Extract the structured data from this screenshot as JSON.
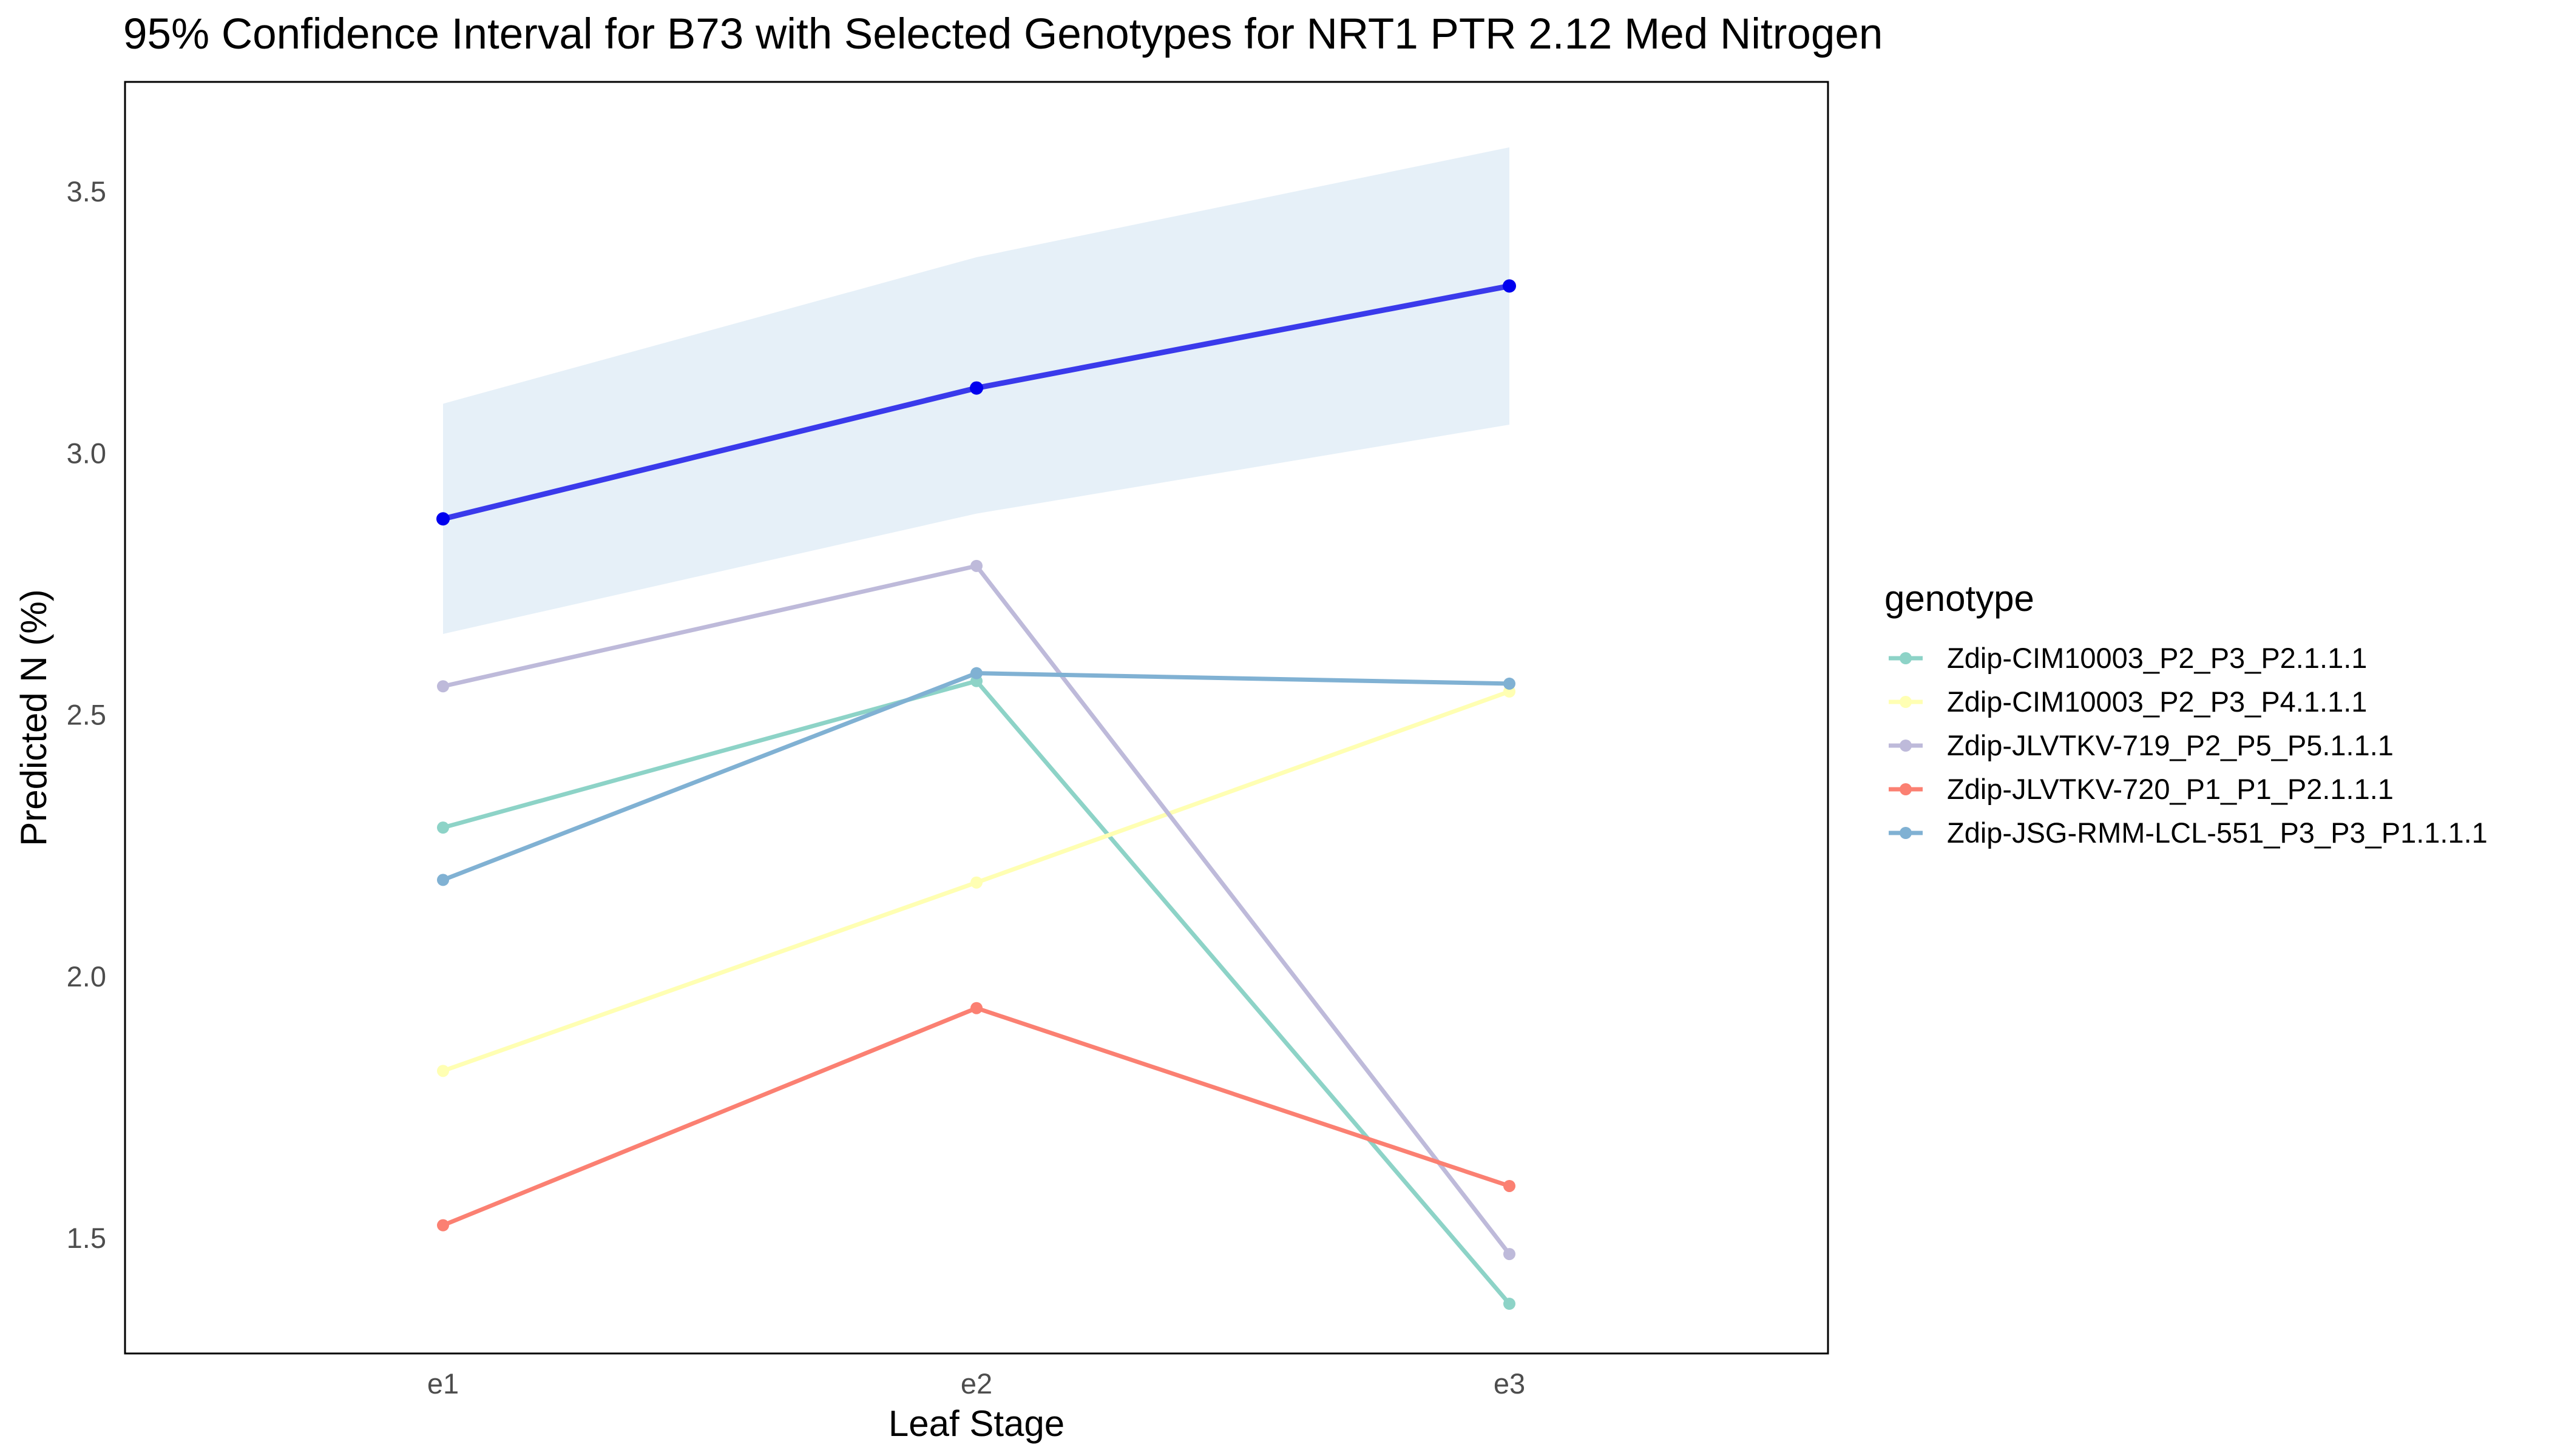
{
  "chart_data": {
    "type": "line",
    "title": "95% Confidence Interval for B73 with Selected Genotypes for NRT1 PTR 2.12 Med Nitrogen",
    "xlabel": "Leaf Stage",
    "ylabel": "Predicted N (%)",
    "categories": [
      "e1",
      "e2",
      "e3"
    ],
    "ylim": [
      1.28,
      3.71
    ],
    "yticks": [
      1.5,
      2.0,
      2.5,
      3.0,
      3.5
    ],
    "ytick_labels": [
      "1.5",
      "2.0",
      "2.5",
      "3.0",
      "3.5"
    ],
    "grid": false,
    "legend_position": "right",
    "legend_title": "genotype",
    "reference": {
      "values": [
        2.875,
        3.125,
        3.32
      ],
      "ci_lower": [
        2.655,
        2.885,
        3.055
      ],
      "ci_upper": [
        3.095,
        3.375,
        3.585
      ],
      "line_color": "#3a3aeb",
      "point_color": "#0000ee",
      "ribbon_color": "#e6f0f8"
    },
    "series": [
      {
        "name": "Zdip-CIM10003_P2_P3_P2.1.1.1",
        "values": [
          2.285,
          2.565,
          1.375
        ],
        "color": "#8dd3c7"
      },
      {
        "name": "Zdip-CIM10003_P2_P3_P4.1.1.1",
        "values": [
          1.82,
          2.18,
          2.545
        ],
        "color": "#ffffb3"
      },
      {
        "name": "Zdip-JLVTKV-719_P2_P5_P5.1.1.1",
        "values": [
          2.555,
          2.785,
          1.47
        ],
        "color": "#bebada"
      },
      {
        "name": "Zdip-JLVTKV-720_P1_P1_P2.1.1.1",
        "values": [
          1.525,
          1.94,
          1.6
        ],
        "color": "#fb8072"
      },
      {
        "name": "Zdip-JSG-RMM-LCL-551_P3_P3_P1.1.1.1",
        "values": [
          2.185,
          2.58,
          2.56
        ],
        "color": "#80b1d3"
      }
    ]
  }
}
